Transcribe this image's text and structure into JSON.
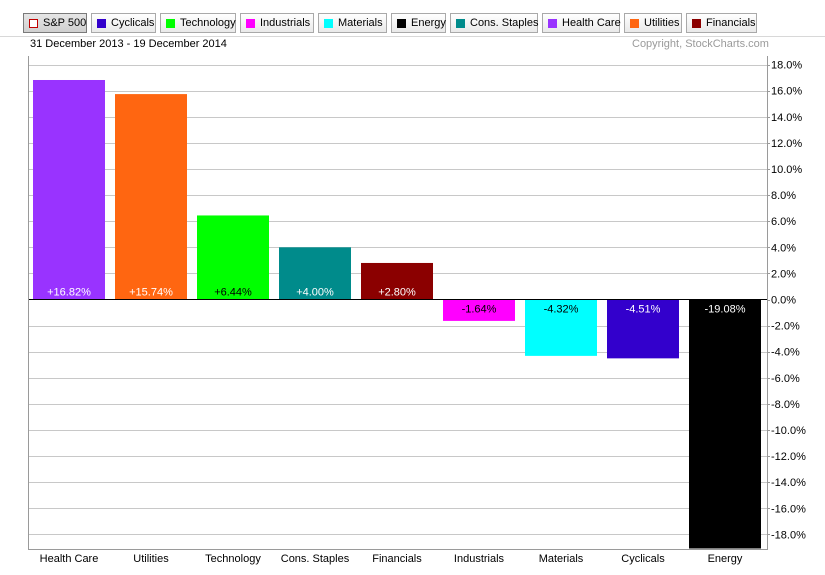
{
  "toolbar": {
    "buttons": [
      {
        "label": "S&P 500",
        "color": "#ffffff",
        "selected": true
      },
      {
        "label": "Cyclicals",
        "color": "#3300cc"
      },
      {
        "label": "Technology",
        "color": "#00ff00"
      },
      {
        "label": "Industrials",
        "color": "#ff00ff"
      },
      {
        "label": "Materials",
        "color": "#00ffff"
      },
      {
        "label": "Energy",
        "color": "#000000"
      },
      {
        "label": "Cons. Staples",
        "color": "#008b8b"
      },
      {
        "label": "Health Care",
        "color": "#9933ff"
      },
      {
        "label": "Utilities",
        "color": "#ff6611"
      },
      {
        "label": "Financials",
        "color": "#8b0000"
      }
    ]
  },
  "header": {
    "date_range": "31 December 2013 - 19 December 2014",
    "copyright": "Copyright, StockCharts.com"
  },
  "chart_data": {
    "type": "bar",
    "title": "",
    "xlabel": "",
    "ylabel": "",
    "categories": [
      "Health Care",
      "Utilities",
      "Technology",
      "Cons. Staples",
      "Financials",
      "Industrials",
      "Materials",
      "Cyclicals",
      "Energy"
    ],
    "values": [
      16.82,
      15.74,
      6.44,
      4.0,
      2.8,
      -1.64,
      -4.32,
      -4.51,
      -19.08
    ],
    "value_labels": [
      "+16.82%",
      "+15.74%",
      "+6.44%",
      "+4.00%",
      "+2.80%",
      "-1.64%",
      "-4.32%",
      "-4.51%",
      "-19.08%"
    ],
    "colors": [
      "#9933ff",
      "#ff6611",
      "#00ff00",
      "#008b8b",
      "#8b0000",
      "#ff00ff",
      "#00ffff",
      "#3300cc",
      "#000000"
    ],
    "label_colors": [
      "#ffffff",
      "#ffffff",
      "#000000",
      "#ffffff",
      "#ffffff",
      "#000000",
      "#000000",
      "#ffffff",
      "#ffffff"
    ],
    "y_ticks": [
      "18.0%",
      "16.0%",
      "14.0%",
      "12.0%",
      "10.0%",
      "8.0%",
      "6.0%",
      "4.0%",
      "2.0%",
      "0.0%",
      "-2.0%",
      "-4.0%",
      "-6.0%",
      "-8.0%",
      "-10.0%",
      "-12.0%",
      "-14.0%",
      "-16.0%",
      "-18.0%"
    ],
    "y_tick_values": [
      18,
      16,
      14,
      12,
      10,
      8,
      6,
      4,
      2,
      0,
      -2,
      -4,
      -6,
      -8,
      -10,
      -12,
      -14,
      -16,
      -18
    ],
    "ylim": [
      -19.2,
      18.6
    ],
    "grid": true,
    "y_axis_side": "right"
  }
}
